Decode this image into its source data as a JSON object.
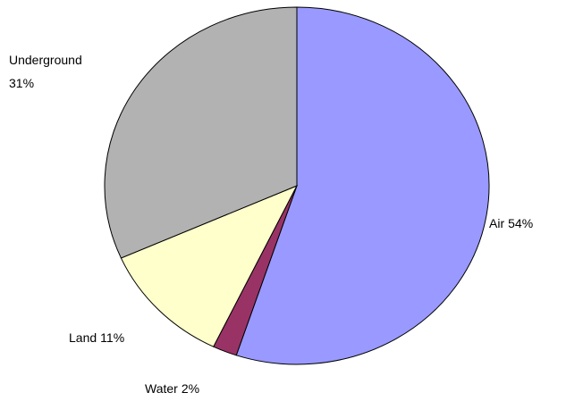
{
  "chart_data": {
    "type": "pie",
    "categories": [
      "Air",
      "Water",
      "Land",
      "Underground"
    ],
    "values": [
      54,
      2,
      11,
      31
    ],
    "value_labels": [
      "54%",
      "2%",
      "11%",
      "31%"
    ],
    "colors": [
      "#9999ff",
      "#993366",
      "#ffffcc",
      "#b2b2b2"
    ]
  }
}
